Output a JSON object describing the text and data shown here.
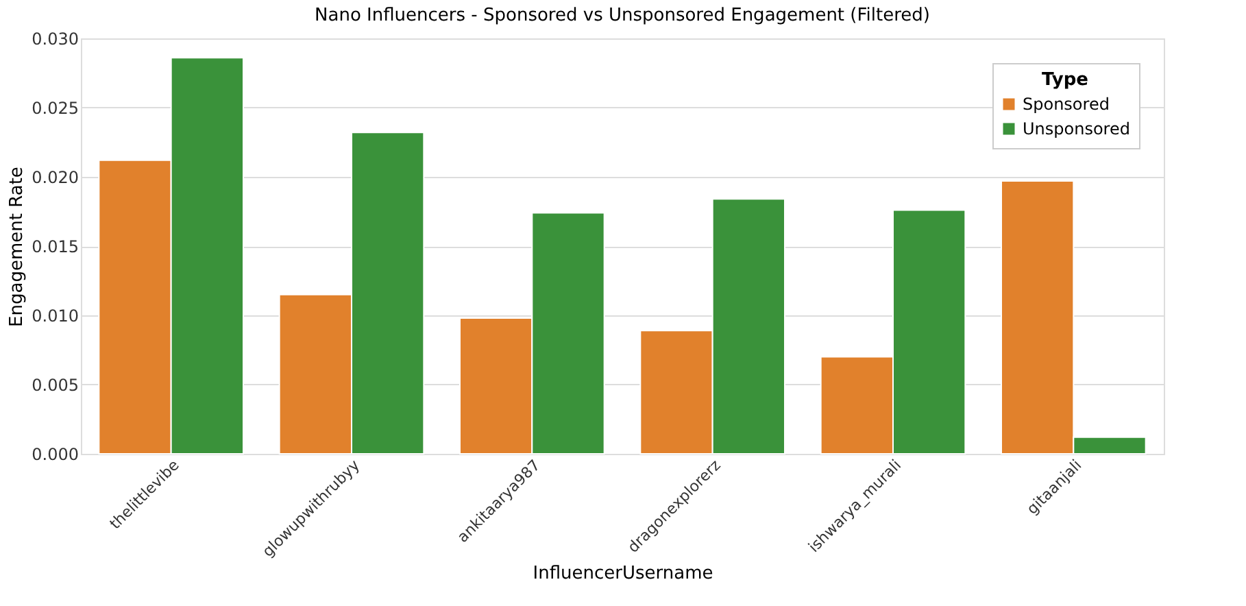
{
  "chart_data": {
    "type": "bar",
    "title": "Nano Influencers - Sponsored vs Unsponsored Engagement (Filtered)",
    "xlabel": "InfluencerUsername",
    "ylabel": "Engagement Rate",
    "legend_title": "Type",
    "categories": [
      "thelittlevibe",
      "glowupwithrubyy",
      "ankitaarya987",
      "dragonexplorerz",
      "ishwarya_murali",
      "gitaanjali"
    ],
    "series": [
      {
        "name": "Sponsored",
        "color": "#e1812c",
        "values": [
          0.0212,
          0.0115,
          0.0098,
          0.0089,
          0.007,
          0.0197
        ]
      },
      {
        "name": "Unsponsored",
        "color": "#3a923a",
        "values": [
          0.0286,
          0.0232,
          0.0174,
          0.0184,
          0.0176,
          0.0012
        ]
      }
    ],
    "ylim": [
      0,
      0.03
    ],
    "yticks": [
      {
        "value": 0,
        "label": "0.000"
      },
      {
        "value": 0.005,
        "label": "0.005"
      },
      {
        "value": 0.01,
        "label": "0.010"
      },
      {
        "value": 0.015,
        "label": "0.015"
      },
      {
        "value": 0.02,
        "label": "0.020"
      },
      {
        "value": 0.025,
        "label": "0.025"
      },
      {
        "value": 0.03,
        "label": "0.030"
      }
    ],
    "grid": "y",
    "legend": "top right"
  }
}
